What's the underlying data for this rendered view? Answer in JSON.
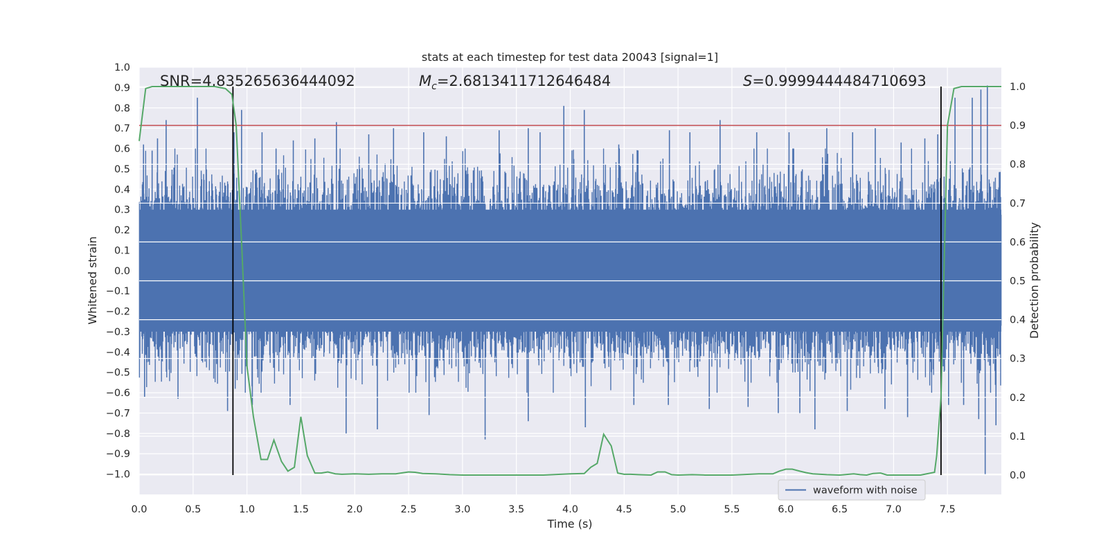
{
  "chart_data": {
    "type": "line",
    "title": "stats at each timestep for test data 20043 [signal=1]",
    "xlabel": "Time (s)",
    "ylabel": "Whitened strain",
    "y2label": "Detection probability",
    "xlim": [
      0.0,
      8.0
    ],
    "ylim": [
      -1.1,
      1.0
    ],
    "y2lim": [
      -0.05,
      1.05
    ],
    "xticks": [
      0.0,
      0.5,
      1.0,
      1.5,
      2.0,
      2.5,
      3.0,
      3.5,
      4.0,
      4.5,
      5.0,
      5.5,
      6.0,
      6.5,
      7.0,
      7.5
    ],
    "xtick_labels": [
      "0.0",
      "0.5",
      "1.0",
      "1.5",
      "2.0",
      "2.5",
      "3.0",
      "3.5",
      "4.0",
      "4.5",
      "5.0",
      "5.5",
      "6.0",
      "6.5",
      "7.0",
      "7.5"
    ],
    "yticks": [
      1.0,
      0.9,
      0.8,
      0.7,
      0.6,
      0.5,
      0.4,
      0.3,
      0.2,
      0.1,
      0.0,
      -0.1,
      -0.2,
      -0.3,
      -0.4,
      -0.5,
      -0.6,
      -0.7,
      -0.8,
      -0.9,
      -1.0
    ],
    "ytick_labels": [
      "1.0",
      "0.9",
      "0.8",
      "0.7",
      "0.6",
      "0.5",
      "0.4",
      "0.3",
      "0.2",
      "0.1",
      "0.0",
      "−0.1",
      "−0.2",
      "−0.3",
      "−0.4",
      "−0.5",
      "−0.6",
      "−0.7",
      "−0.8",
      "−0.9",
      "−1.0"
    ],
    "y2ticks": [
      1.0,
      0.9,
      0.8,
      0.7,
      0.6,
      0.5,
      0.4,
      0.3,
      0.2,
      0.1,
      0.0
    ],
    "y2tick_labels": [
      "1.0",
      "0.9",
      "0.8",
      "0.7",
      "0.6",
      "0.5",
      "0.4",
      "0.3",
      "0.2",
      "0.1",
      "0.0"
    ],
    "grid": true,
    "annotations": {
      "snr": "SNR=4.835265636444092",
      "mc_symbol": "M",
      "mc_sub": "c",
      "mc_value": "=2.6813411712646484",
      "s_symbol": "S",
      "s_value": "=0.9999444484710693"
    },
    "series": [
      {
        "name": "waveform with noise",
        "color": "#4c72b0",
        "axis": "left",
        "description": "dense noisy whitened strain time series",
        "envelope_typical": [
          -0.4,
          0.4
        ],
        "spikes": [
          {
            "x": 0.04,
            "y": 0.62
          },
          {
            "x": 0.12,
            "y": 0.59
          },
          {
            "x": 0.17,
            "y": 0.65
          },
          {
            "x": 0.25,
            "y": 0.74
          },
          {
            "x": 0.54,
            "y": 0.85
          },
          {
            "x": 0.88,
            "y": 0.68
          },
          {
            "x": 0.95,
            "y": 0.79
          },
          {
            "x": 1.14,
            "y": 0.68
          },
          {
            "x": 1.27,
            "y": 0.6
          },
          {
            "x": 1.43,
            "y": 0.64
          },
          {
            "x": 1.63,
            "y": 0.65
          },
          {
            "x": 1.83,
            "y": 0.73
          },
          {
            "x": 2.13,
            "y": 0.67
          },
          {
            "x": 2.36,
            "y": 0.7
          },
          {
            "x": 2.64,
            "y": 0.68
          },
          {
            "x": 2.85,
            "y": 0.66
          },
          {
            "x": 3.34,
            "y": 0.69
          },
          {
            "x": 3.61,
            "y": 0.7
          },
          {
            "x": 3.72,
            "y": 0.68
          },
          {
            "x": 3.94,
            "y": 0.81
          },
          {
            "x": 4.13,
            "y": 0.79
          },
          {
            "x": 4.45,
            "y": 0.62
          },
          {
            "x": 4.92,
            "y": 0.69
          },
          {
            "x": 5.11,
            "y": 0.68
          },
          {
            "x": 5.39,
            "y": 0.74
          },
          {
            "x": 5.73,
            "y": 0.68
          },
          {
            "x": 6.03,
            "y": 0.68
          },
          {
            "x": 6.38,
            "y": 0.7
          },
          {
            "x": 6.62,
            "y": 0.68
          },
          {
            "x": 6.83,
            "y": 0.7
          },
          {
            "x": 7.07,
            "y": 0.63
          },
          {
            "x": 7.29,
            "y": 0.65
          },
          {
            "x": 7.41,
            "y": 0.67
          },
          {
            "x": 7.57,
            "y": 0.85
          },
          {
            "x": 7.73,
            "y": 0.85
          },
          {
            "x": 7.81,
            "y": 0.89
          },
          {
            "x": 7.87,
            "y": 0.91
          },
          {
            "x": 0.05,
            "y": -0.62
          },
          {
            "x": 0.36,
            "y": -0.63
          },
          {
            "x": 0.82,
            "y": -0.69
          },
          {
            "x": 1.05,
            "y": -0.66
          },
          {
            "x": 1.4,
            "y": -0.66
          },
          {
            "x": 1.92,
            "y": -0.8
          },
          {
            "x": 2.21,
            "y": -0.78
          },
          {
            "x": 2.69,
            "y": -0.71
          },
          {
            "x": 3.21,
            "y": -0.83
          },
          {
            "x": 3.61,
            "y": -0.74
          },
          {
            "x": 4.14,
            "y": -0.77
          },
          {
            "x": 4.59,
            "y": -0.66
          },
          {
            "x": 4.91,
            "y": -0.66
          },
          {
            "x": 5.29,
            "y": -0.68
          },
          {
            "x": 5.65,
            "y": -0.67
          },
          {
            "x": 5.93,
            "y": -0.7
          },
          {
            "x": 6.13,
            "y": -0.7
          },
          {
            "x": 6.27,
            "y": -0.78
          },
          {
            "x": 6.57,
            "y": -0.69
          },
          {
            "x": 6.92,
            "y": -0.68
          },
          {
            "x": 7.13,
            "y": -0.72
          },
          {
            "x": 7.51,
            "y": -0.66
          },
          {
            "x": 7.65,
            "y": -0.66
          },
          {
            "x": 7.79,
            "y": -0.73
          },
          {
            "x": 7.85,
            "y": -1.0
          },
          {
            "x": 7.95,
            "y": -0.76
          }
        ]
      },
      {
        "name": "detection probability",
        "color": "#55a868",
        "axis": "right",
        "x": [
          0.0,
          0.06,
          0.12,
          0.3,
          0.5,
          0.7,
          0.8,
          0.86,
          0.9,
          0.95,
          1.0,
          1.06,
          1.13,
          1.19,
          1.25,
          1.32,
          1.38,
          1.44,
          1.5,
          1.56,
          1.63,
          1.69,
          1.75,
          1.82,
          1.88,
          2.0,
          2.13,
          2.25,
          2.38,
          2.5,
          2.56,
          2.63,
          2.75,
          2.88,
          3.0,
          3.25,
          3.5,
          3.75,
          4.0,
          4.13,
          4.19,
          4.25,
          4.31,
          4.38,
          4.44,
          4.5,
          4.56,
          4.63,
          4.75,
          4.81,
          4.88,
          4.94,
          5.0,
          5.13,
          5.25,
          5.5,
          5.75,
          5.88,
          5.94,
          6.0,
          6.06,
          6.13,
          6.19,
          6.25,
          6.38,
          6.5,
          6.63,
          6.69,
          6.75,
          6.81,
          6.88,
          6.94,
          7.0,
          7.06,
          7.13,
          7.25,
          7.38,
          7.4,
          7.44,
          7.5,
          7.56,
          7.63,
          7.75,
          8.0
        ],
        "y": [
          0.86,
          0.995,
          1.0,
          1.0,
          1.0,
          1.0,
          0.995,
          0.98,
          0.9,
          0.6,
          0.28,
          0.15,
          0.04,
          0.04,
          0.09,
          0.035,
          0.01,
          0.02,
          0.15,
          0.05,
          0.005,
          0.005,
          0.008,
          0.003,
          0.002,
          0.003,
          0.002,
          0.003,
          0.003,
          0.008,
          0.007,
          0.004,
          0.003,
          0.001,
          0.0,
          0.0,
          0.0,
          0.0,
          0.003,
          0.004,
          0.02,
          0.03,
          0.105,
          0.075,
          0.005,
          0.002,
          0.002,
          0.001,
          0.0,
          0.008,
          0.008,
          0.001,
          0.0,
          0.001,
          0.0,
          0.0,
          0.003,
          0.003,
          0.01,
          0.015,
          0.015,
          0.01,
          0.006,
          0.003,
          0.001,
          0.0,
          0.003,
          0.001,
          0.0,
          0.004,
          0.005,
          0.0,
          0.0,
          0.0,
          0.0,
          0.0,
          0.007,
          0.05,
          0.2,
          0.9,
          0.995,
          1.0,
          1.0,
          1.0
        ]
      },
      {
        "name": "threshold",
        "color": "#c44e52",
        "axis": "right",
        "y": 0.9
      },
      {
        "name": "signal boundaries",
        "color": "#000000",
        "axis": "right",
        "x": [
          0.87,
          7.44
        ],
        "y_range": [
          0.0,
          1.0
        ]
      }
    ],
    "legend": {
      "position": "lower-right",
      "entries": [
        {
          "label": "waveform with noise",
          "color": "#4c72b0"
        }
      ]
    }
  }
}
